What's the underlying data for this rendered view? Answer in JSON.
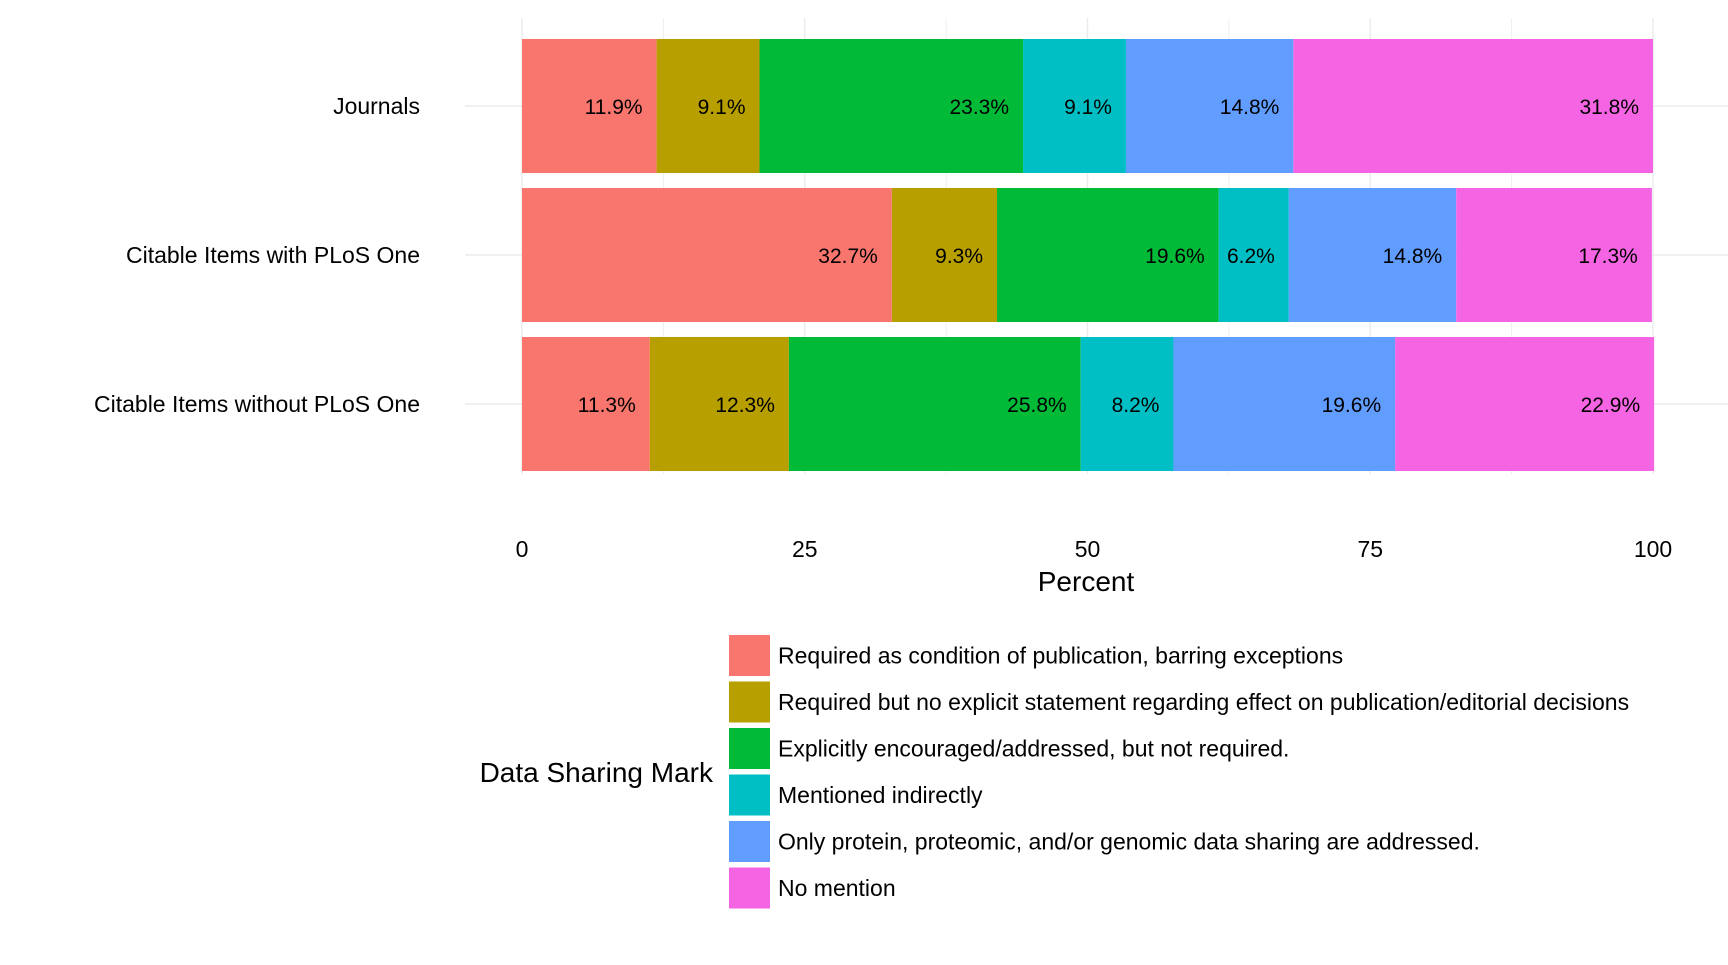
{
  "chart_data": {
    "type": "bar",
    "orientation": "horizontal",
    "stacked": true,
    "categories": [
      "Journals",
      "Citable Items with PLoS One",
      "Citable Items without PLoS One"
    ],
    "series": [
      {
        "name": "Required as condition of publication, barring exceptions",
        "color": "#F8766D",
        "values": [
          11.9,
          32.7,
          11.3
        ],
        "labels": [
          "11.9%",
          "32.7%",
          "11.3%"
        ]
      },
      {
        "name": "Required but no explicit statement regarding effect on publication/editorial decisions",
        "color": "#B79F00",
        "values": [
          9.1,
          9.3,
          12.3
        ],
        "labels": [
          "9.1%",
          "9.3%",
          "12.3%"
        ]
      },
      {
        "name": "Explicitly encouraged/addressed, but not required.",
        "color": "#00BA38",
        "values": [
          23.3,
          19.6,
          25.8
        ],
        "labels": [
          "23.3%",
          "19.6%",
          "25.8%"
        ]
      },
      {
        "name": "Mentioned indirectly",
        "color": "#00BFC4",
        "values": [
          9.1,
          6.2,
          8.2
        ],
        "labels": [
          "9.1%",
          "6.2%",
          "8.2%"
        ]
      },
      {
        "name": "Only protein, proteomic, and/or genomic data sharing are addressed.",
        "color": "#619CFF",
        "values": [
          14.8,
          14.8,
          19.6
        ],
        "labels": [
          "14.8%",
          "14.8%",
          "19.6%"
        ]
      },
      {
        "name": "No mention",
        "color": "#F564E3",
        "values": [
          31.8,
          17.3,
          22.9
        ],
        "labels": [
          "31.8%",
          "17.3%",
          "22.9%"
        ]
      }
    ],
    "xlabel": "Percent",
    "ylabel": "",
    "xlim": [
      0,
      100
    ],
    "x_ticks": [
      0,
      25,
      50,
      75,
      100
    ],
    "x_tick_labels": [
      "0",
      "25",
      "50",
      "75",
      "100"
    ],
    "legend_title": "Data Sharing Mark",
    "legend_position": "bottom",
    "grid": true
  }
}
